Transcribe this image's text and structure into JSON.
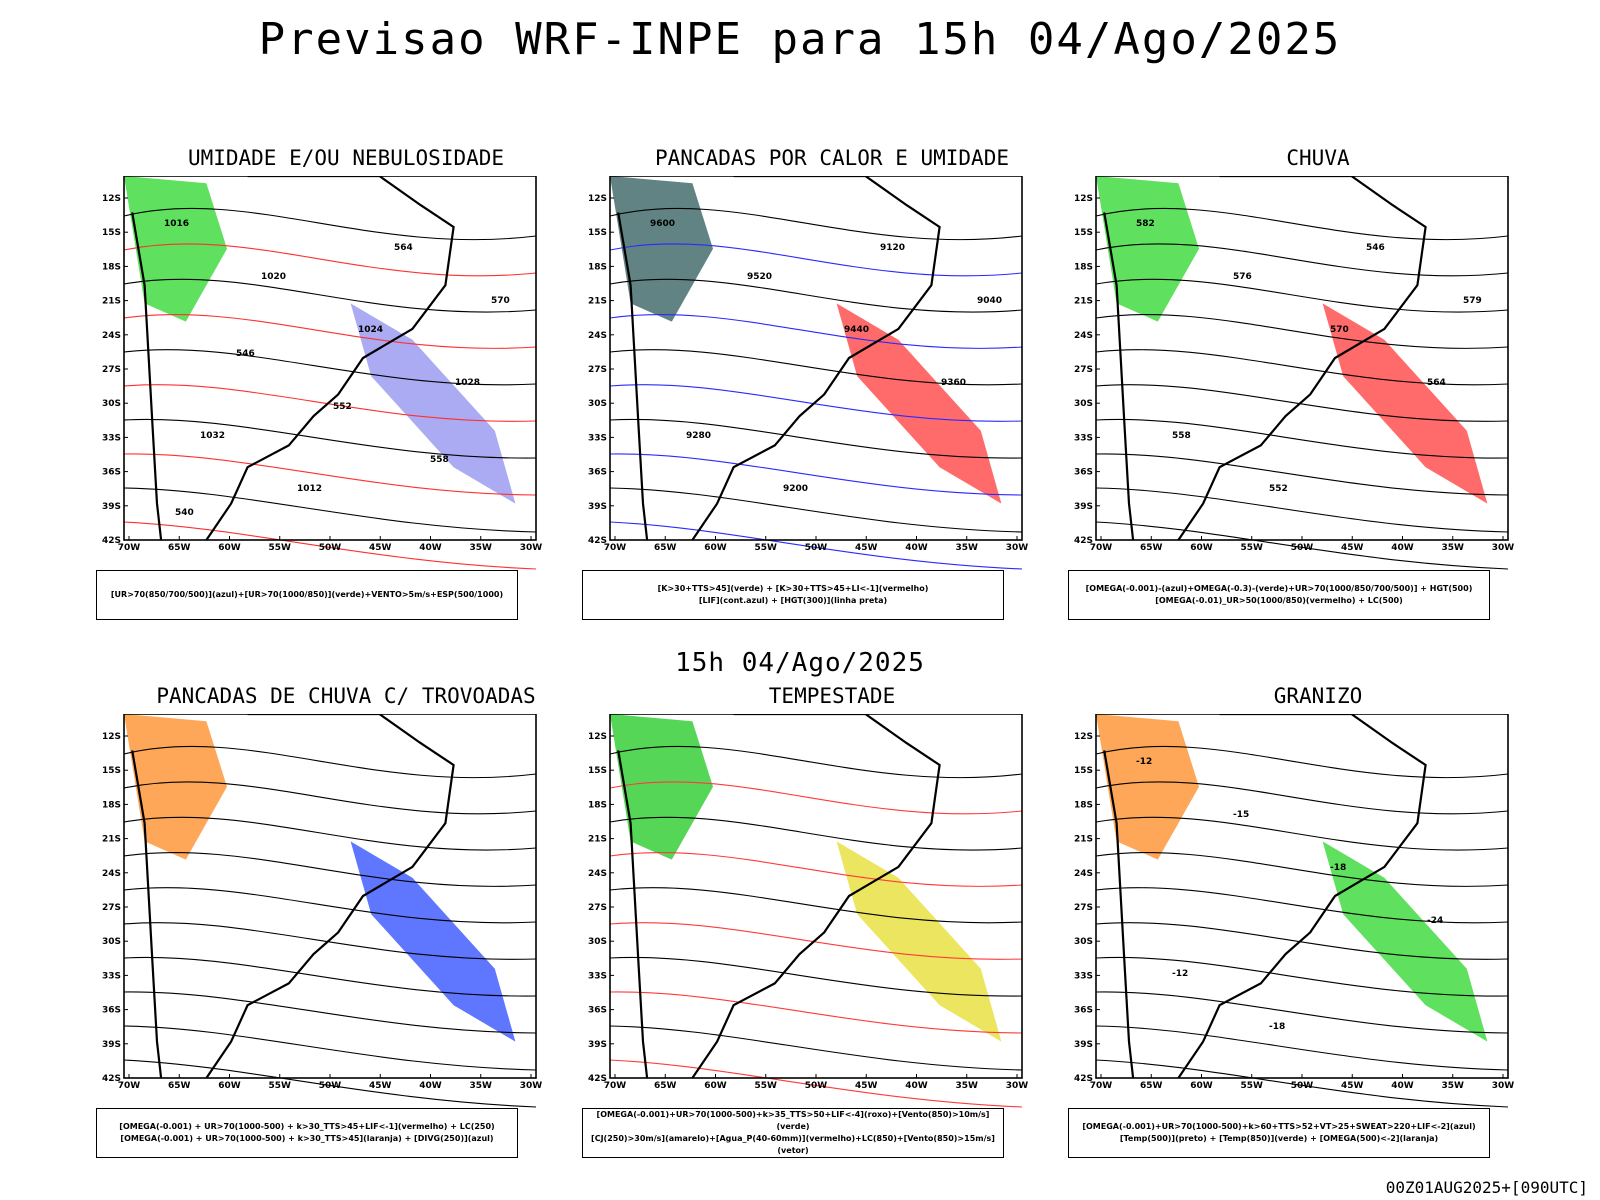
{
  "title": "Previsao WRF-INPE  para 15h 04/Ago/2025",
  "mid_date": "15h 04/Ago/2025",
  "footer": "00Z01AUG2025+[090UTC]",
  "axes": {
    "lat": [
      "12S",
      "15S",
      "18S",
      "21S",
      "24S",
      "27S",
      "30S",
      "33S",
      "36S",
      "39S",
      "42S"
    ],
    "lon": [
      "70W",
      "65W",
      "60W",
      "55W",
      "50W",
      "45W",
      "40W",
      "35W",
      "30W"
    ]
  },
  "panels": [
    {
      "title": "UMIDADE E/OU NEBULOSIDADE",
      "legend": [
        "[UR>70(850/700/500)](azul)+[UR>70(1000/850)](verde)+VENTO>5m/s+ESP(500/1000)"
      ],
      "contours": [
        "1016",
        "1020",
        "1024",
        "1028",
        "1032",
        "1012",
        "564",
        "570",
        "546",
        "552",
        "558",
        "540"
      ],
      "colors": {
        "primary": "#8f8ff0",
        "secondary": "#2ad62a",
        "contour": "#ff3030"
      }
    },
    {
      "title": "PANCADAS POR CALOR E UMIDADE",
      "legend": [
        "[K>30+TTS>45](verde) + [K>30+TTS>45+LI<-1](vermelho)",
        "[LIF](cont.azul) + [HGT(300)](linha preta)"
      ],
      "contours": [
        "9600",
        "9520",
        "9440",
        "9360",
        "9280",
        "9200",
        "9120",
        "9040"
      ],
      "colors": {
        "primary": "#ff3a3a",
        "secondary": "#2d5a5a",
        "contour": "#2a2aff"
      }
    },
    {
      "title": "CHUVA",
      "legend": [
        "[OMEGA(-0.001)-(azul)+OMEGA(-0.3)-(verde)+UR>70(1000/850/700/500)] + HGT(500)",
        "[OMEGA(-0.01)_UR>50(1000/850)(vermelho) + LC(500)"
      ],
      "contours": [
        "582",
        "576",
        "570",
        "564",
        "558",
        "552",
        "546",
        "579"
      ],
      "colors": {
        "primary": "#ff3a3a",
        "secondary": "#2ad62a",
        "contour": "#000000"
      }
    },
    {
      "title": "PANCADAS DE CHUVA C/ TROVOADAS",
      "legend": [
        "[OMEGA(-0.001) + UR>70(1000-500) + k>30_TTS>45+LIF<-1](vermelho) + LC(250)",
        "[OMEGA(-0.001) + UR>70(1000-500) + k>30_TTS>45](laranja) + [DIVG(250)](azul)"
      ],
      "contours": [],
      "colors": {
        "primary": "#2a4aff",
        "secondary": "#ff8a20",
        "contour": "#000000"
      }
    },
    {
      "title": "TEMPESTADE",
      "legend": [
        "[OMEGA(-0.001)+UR>70(1000-500)+k>35_TTS>50+LIF<-4](roxo)+[Vento(850)>10m/s](verde)",
        "[CJ(250)>30m/s](amarelo)+[Agua_P(40-60mm)](vermelho)+LC(850)+[Vento(850)>15m/s](vetor)"
      ],
      "contours": [],
      "colors": {
        "primary": "#e6dc2a",
        "secondary": "#1ec81e",
        "contour": "#ff3a3a"
      }
    },
    {
      "title": "GRANIZO",
      "legend": [
        "[OMEGA(-0.001)+UR>70(1000-500)+k>60+TTS>52+VT>25+SWEAT>220+LIF<-2](azul)",
        "[Temp(500)](preto) + [Temp(850)](verde) + [OMEGA(500)<-2](laranja)"
      ],
      "contours": [
        "-12",
        "-15",
        "-18",
        "-24",
        "-12",
        "-18"
      ],
      "colors": {
        "primary": "#2ad62a",
        "secondary": "#ff8a20",
        "contour": "#000000"
      }
    }
  ]
}
